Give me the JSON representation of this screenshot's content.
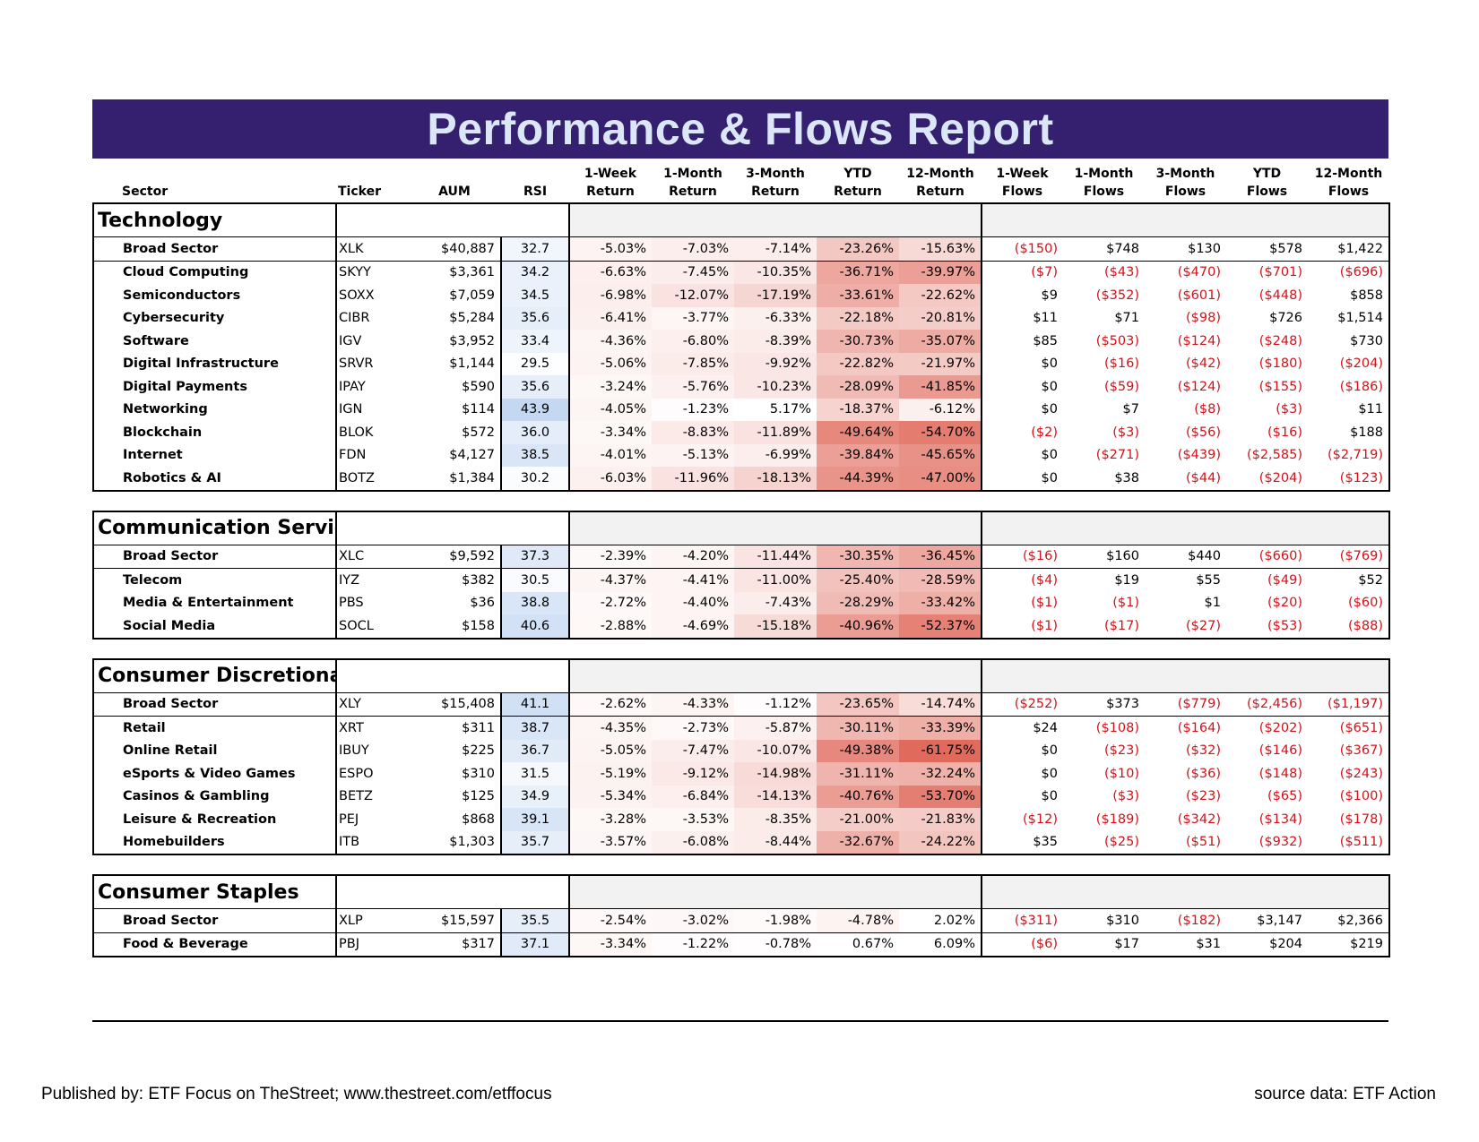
{
  "title": "Performance & Flows Report",
  "headers": [
    {
      "line1": "",
      "line2": "Sector"
    },
    {
      "line1": "",
      "line2": "Ticker"
    },
    {
      "line1": "",
      "line2": "AUM"
    },
    {
      "line1": "",
      "line2": "RSI"
    },
    {
      "line1": "1-Week",
      "line2": "Return"
    },
    {
      "line1": "1-Month",
      "line2": "Return"
    },
    {
      "line1": "3-Month",
      "line2": "Return"
    },
    {
      "line1": "YTD",
      "line2": "Return"
    },
    {
      "line1": "12-Month",
      "line2": "Return"
    },
    {
      "line1": "1-Week",
      "line2": "Flows"
    },
    {
      "line1": "1-Month",
      "line2": "Flows"
    },
    {
      "line1": "3-Month",
      "line2": "Flows"
    },
    {
      "line1": "YTD",
      "line2": "Flows"
    },
    {
      "line1": "12-Month",
      "line2": "Flows"
    }
  ],
  "sections": [
    {
      "name": "Technology",
      "rows": [
        [
          "Broad Sector",
          "XLK",
          "$40,887",
          "32.7",
          "-5.03%",
          "-7.03%",
          "-7.14%",
          "-23.26%",
          "-15.63%",
          "($150)",
          "$748",
          "$130",
          "$578",
          "$1,422"
        ],
        [
          "Cloud Computing",
          "SKYY",
          "$3,361",
          "34.2",
          "-6.63%",
          "-7.45%",
          "-10.35%",
          "-36.71%",
          "-39.97%",
          "($7)",
          "($43)",
          "($470)",
          "($701)",
          "($696)"
        ],
        [
          "Semiconductors",
          "SOXX",
          "$7,059",
          "34.5",
          "-6.98%",
          "-12.07%",
          "-17.19%",
          "-33.61%",
          "-22.62%",
          "$9",
          "($352)",
          "($601)",
          "($448)",
          "$858"
        ],
        [
          "Cybersecurity",
          "CIBR",
          "$5,284",
          "35.6",
          "-6.41%",
          "-3.77%",
          "-6.33%",
          "-22.18%",
          "-20.81%",
          "$11",
          "$71",
          "($98)",
          "$726",
          "$1,514"
        ],
        [
          "Software",
          "IGV",
          "$3,952",
          "33.4",
          "-4.36%",
          "-6.80%",
          "-8.39%",
          "-30.73%",
          "-35.07%",
          "$85",
          "($503)",
          "($124)",
          "($248)",
          "$730"
        ],
        [
          "Digital Infrastructure",
          "SRVR",
          "$1,144",
          "29.5",
          "-5.06%",
          "-7.85%",
          "-9.92%",
          "-22.82%",
          "-21.97%",
          "$0",
          "($16)",
          "($42)",
          "($180)",
          "($204)"
        ],
        [
          "Digital Payments",
          "IPAY",
          "$590",
          "35.6",
          "-3.24%",
          "-5.76%",
          "-10.23%",
          "-28.09%",
          "-41.85%",
          "$0",
          "($59)",
          "($124)",
          "($155)",
          "($186)"
        ],
        [
          "Networking",
          "IGN",
          "$114",
          "43.9",
          "-4.05%",
          "-1.23%",
          "5.17%",
          "-18.37%",
          "-6.12%",
          "$0",
          "$7",
          "($8)",
          "($3)",
          "$11"
        ],
        [
          "Blockchain",
          "BLOK",
          "$572",
          "36.0",
          "-3.34%",
          "-8.83%",
          "-11.89%",
          "-49.64%",
          "-54.70%",
          "($2)",
          "($3)",
          "($56)",
          "($16)",
          "$188"
        ],
        [
          "Internet",
          "FDN",
          "$4,127",
          "38.5",
          "-4.01%",
          "-5.13%",
          "-6.99%",
          "-39.84%",
          "-45.65%",
          "$0",
          "($271)",
          "($439)",
          "($2,585)",
          "($2,719)"
        ],
        [
          "Robotics & AI",
          "BOTZ",
          "$1,384",
          "30.2",
          "-6.03%",
          "-11.96%",
          "-18.13%",
          "-44.39%",
          "-47.00%",
          "$0",
          "$38",
          "($44)",
          "($204)",
          "($123)"
        ]
      ]
    },
    {
      "name": "Communication Services",
      "rows": [
        [
          "Broad Sector",
          "XLC",
          "$9,592",
          "37.3",
          "-2.39%",
          "-4.20%",
          "-11.44%",
          "-30.35%",
          "-36.45%",
          "($16)",
          "$160",
          "$440",
          "($660)",
          "($769)"
        ],
        [
          "Telecom",
          "IYZ",
          "$382",
          "30.5",
          "-4.37%",
          "-4.41%",
          "-11.00%",
          "-25.40%",
          "-28.59%",
          "($4)",
          "$19",
          "$55",
          "($49)",
          "$52"
        ],
        [
          "Media & Entertainment",
          "PBS",
          "$36",
          "38.8",
          "-2.72%",
          "-4.40%",
          "-7.43%",
          "-28.29%",
          "-33.42%",
          "($1)",
          "($1)",
          "$1",
          "($20)",
          "($60)"
        ],
        [
          "Social Media",
          "SOCL",
          "$158",
          "40.6",
          "-2.88%",
          "-4.69%",
          "-15.18%",
          "-40.96%",
          "-52.37%",
          "($1)",
          "($17)",
          "($27)",
          "($53)",
          "($88)"
        ]
      ]
    },
    {
      "name": "Consumer Discretionary",
      "rows": [
        [
          "Broad Sector",
          "XLY",
          "$15,408",
          "41.1",
          "-2.62%",
          "-4.33%",
          "-1.12%",
          "-23.65%",
          "-14.74%",
          "($252)",
          "$373",
          "($779)",
          "($2,456)",
          "($1,197)"
        ],
        [
          "Retail",
          "XRT",
          "$311",
          "38.7",
          "-4.35%",
          "-2.73%",
          "-5.87%",
          "-30.11%",
          "-33.39%",
          "$24",
          "($108)",
          "($164)",
          "($202)",
          "($651)"
        ],
        [
          "Online Retail",
          "IBUY",
          "$225",
          "36.7",
          "-5.05%",
          "-7.47%",
          "-10.07%",
          "-49.38%",
          "-61.75%",
          "$0",
          "($23)",
          "($32)",
          "($146)",
          "($367)"
        ],
        [
          "eSports & Video Games",
          "ESPO",
          "$310",
          "31.5",
          "-5.19%",
          "-9.12%",
          "-14.98%",
          "-31.11%",
          "-32.24%",
          "$0",
          "($10)",
          "($36)",
          "($148)",
          "($243)"
        ],
        [
          "Casinos & Gambling",
          "BETZ",
          "$125",
          "34.9",
          "-5.34%",
          "-6.84%",
          "-14.13%",
          "-40.76%",
          "-53.70%",
          "$0",
          "($3)",
          "($23)",
          "($65)",
          "($100)"
        ],
        [
          "Leisure & Recreation",
          "PEJ",
          "$868",
          "39.1",
          "-3.28%",
          "-3.53%",
          "-8.35%",
          "-21.00%",
          "-21.83%",
          "($12)",
          "($189)",
          "($342)",
          "($134)",
          "($178)"
        ],
        [
          "Homebuilders",
          "ITB",
          "$1,303",
          "35.7",
          "-3.57%",
          "-6.08%",
          "-8.44%",
          "-32.67%",
          "-24.22%",
          "$35",
          "($25)",
          "($51)",
          "($932)",
          "($511)"
        ]
      ]
    },
    {
      "name": "Consumer Staples",
      "rows": [
        [
          "Broad Sector",
          "XLP",
          "$15,597",
          "35.5",
          "-2.54%",
          "-3.02%",
          "-1.98%",
          "-4.78%",
          "2.02%",
          "($311)",
          "$310",
          "($182)",
          "$3,147",
          "$2,366"
        ],
        [
          "Food & Beverage",
          "PBJ",
          "$317",
          "37.1",
          "-3.34%",
          "-1.22%",
          "-0.78%",
          "0.67%",
          "6.09%",
          "($6)",
          "$17",
          "$31",
          "$204",
          "$219"
        ]
      ]
    }
  ],
  "footer": {
    "published": "Published by: ETF Focus on TheStreet; www.thestreet.com/etffocus",
    "source": "source data: ETF Action"
  },
  "colors": {
    "banner": "#35206f",
    "title_text": "#dbe6f7",
    "negative_text": "#d0131b",
    "heat_negative": "#e06a5c",
    "heat_positive": "#ffffff",
    "rsi_high": "#c5d8f2",
    "rsi_low": "#ffffff"
  }
}
